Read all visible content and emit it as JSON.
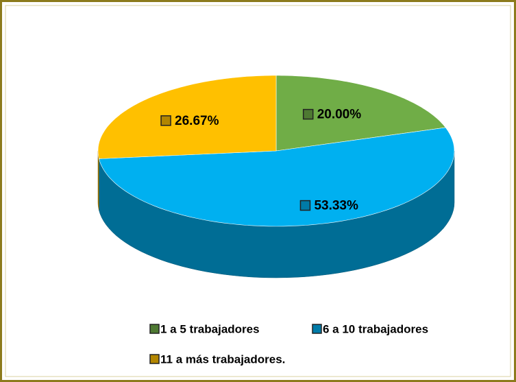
{
  "chart_data": {
    "type": "pie",
    "categories": [
      "1 a 5 trabajadores",
      "6 a 10 trabajadores",
      "11 a más trabajadores."
    ],
    "values": [
      20.0,
      53.33,
      26.67
    ],
    "value_labels": [
      "20.00%",
      "53.33%",
      "26.67%"
    ],
    "colors": [
      "#70ad47",
      "#00b0f0",
      "#ffc000"
    ],
    "legend": "bottom"
  }
}
